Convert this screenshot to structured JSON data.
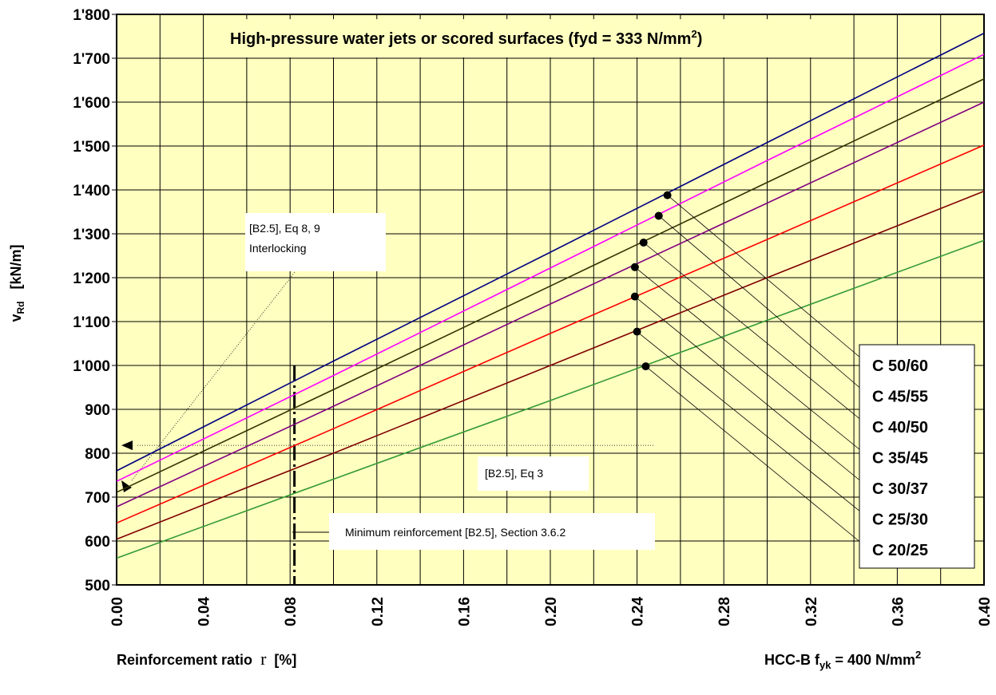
{
  "chart_data": {
    "type": "line",
    "title": "High-pressure water jets or scored surfaces (fyd = 333 N/mm²)",
    "title_main": "High-pressure water jets or scored surfaces (fyd = 333 N/mm",
    "title_sup": "2",
    "title_end": ")",
    "xlabel": "Reinforcement ratio",
    "xlabel_symbol": "r",
    "xlabel_unit": "[%]",
    "ylabel_symbol": "v",
    "ylabel_sub": "Rd",
    "ylabel_unit": "[kN/m]",
    "footnote_prefix": "HCC-B f",
    "footnote_sub": "yk",
    "footnote_mid": " = 400 N/mm",
    "footnote_sup": "2",
    "xlim": [
      0,
      0.4
    ],
    "ylim": [
      500,
      1800
    ],
    "x_ticks": [
      0,
      0.02,
      0.04,
      0.06,
      0.08,
      0.1,
      0.12,
      0.14,
      0.16,
      0.18,
      0.2,
      0.22,
      0.24,
      0.26,
      0.28,
      0.3,
      0.32,
      0.34,
      0.36,
      0.38,
      0.4
    ],
    "x_tick_labels": [
      "0.00",
      "0.04",
      "0.08",
      "0.12",
      "0.16",
      "0.20",
      "0.24",
      "0.28",
      "0.32",
      "0.36",
      "0.40"
    ],
    "x_tick_label_values": [
      0,
      0.04,
      0.08,
      0.12,
      0.16,
      0.2,
      0.24,
      0.28,
      0.32,
      0.36,
      0.4
    ],
    "y_tick_values": [
      500,
      600,
      700,
      800,
      900,
      1000,
      1100,
      1200,
      1300,
      1400,
      1500,
      1600,
      1700,
      1800
    ],
    "y_tick_labels": [
      "500",
      "600",
      "700",
      "800",
      "900",
      "1'000",
      "1'100",
      "1'200",
      "1'300",
      "1'400",
      "1'500",
      "1'600",
      "1'700",
      "1'800"
    ],
    "grid": true,
    "background": "#ffffc0",
    "x": [
      0,
      0.1,
      0.2,
      0.3,
      0.4
    ],
    "series": [
      {
        "name": "C 50/60",
        "color": "#000080",
        "values": [
          760,
          1010,
          1258,
          1508,
          1757
        ],
        "dot": [
          0.254,
          1388
        ]
      },
      {
        "name": "C 45/55",
        "color": "#ff00ff",
        "values": [
          736,
          977,
          1222,
          1467,
          1709
        ],
        "dot": [
          0.25,
          1341
        ]
      },
      {
        "name": "C 40/50",
        "color": "#333300",
        "values": [
          711,
          945,
          1181,
          1417,
          1653
        ],
        "dot": [
          0.243,
          1280
        ]
      },
      {
        "name": "C 35/45",
        "color": "#800080",
        "values": [
          678,
          907,
          1140,
          1370,
          1600
        ],
        "dot": [
          0.239,
          1224
        ]
      },
      {
        "name": "C 30/37",
        "color": "#ff0000",
        "values": [
          641,
          856,
          1073,
          1287,
          1502
        ],
        "dot": [
          0.239,
          1157
        ]
      },
      {
        "name": "C 25/30",
        "color": "#800000",
        "values": [
          604,
          800,
          1000,
          1200,
          1397
        ],
        "dot": [
          0.24,
          1077
        ]
      },
      {
        "name": "C 20/25",
        "color": "#339933",
        "values": [
          561,
          741,
          920,
          1103,
          1285
        ],
        "dot": [
          0.244,
          998
        ]
      }
    ],
    "legend_position": "bottom-right",
    "annotations": {
      "interlocking_line1": "[B2.5], Eq 8, 9",
      "interlocking_line2": "Interlocking",
      "eq3": "[B2.5], Eq 3",
      "minimum": "Minimum reinforcement [B2.5], Section 3.6.2",
      "min_reinforcement_x": 0.082,
      "reference_y": 818
    }
  }
}
